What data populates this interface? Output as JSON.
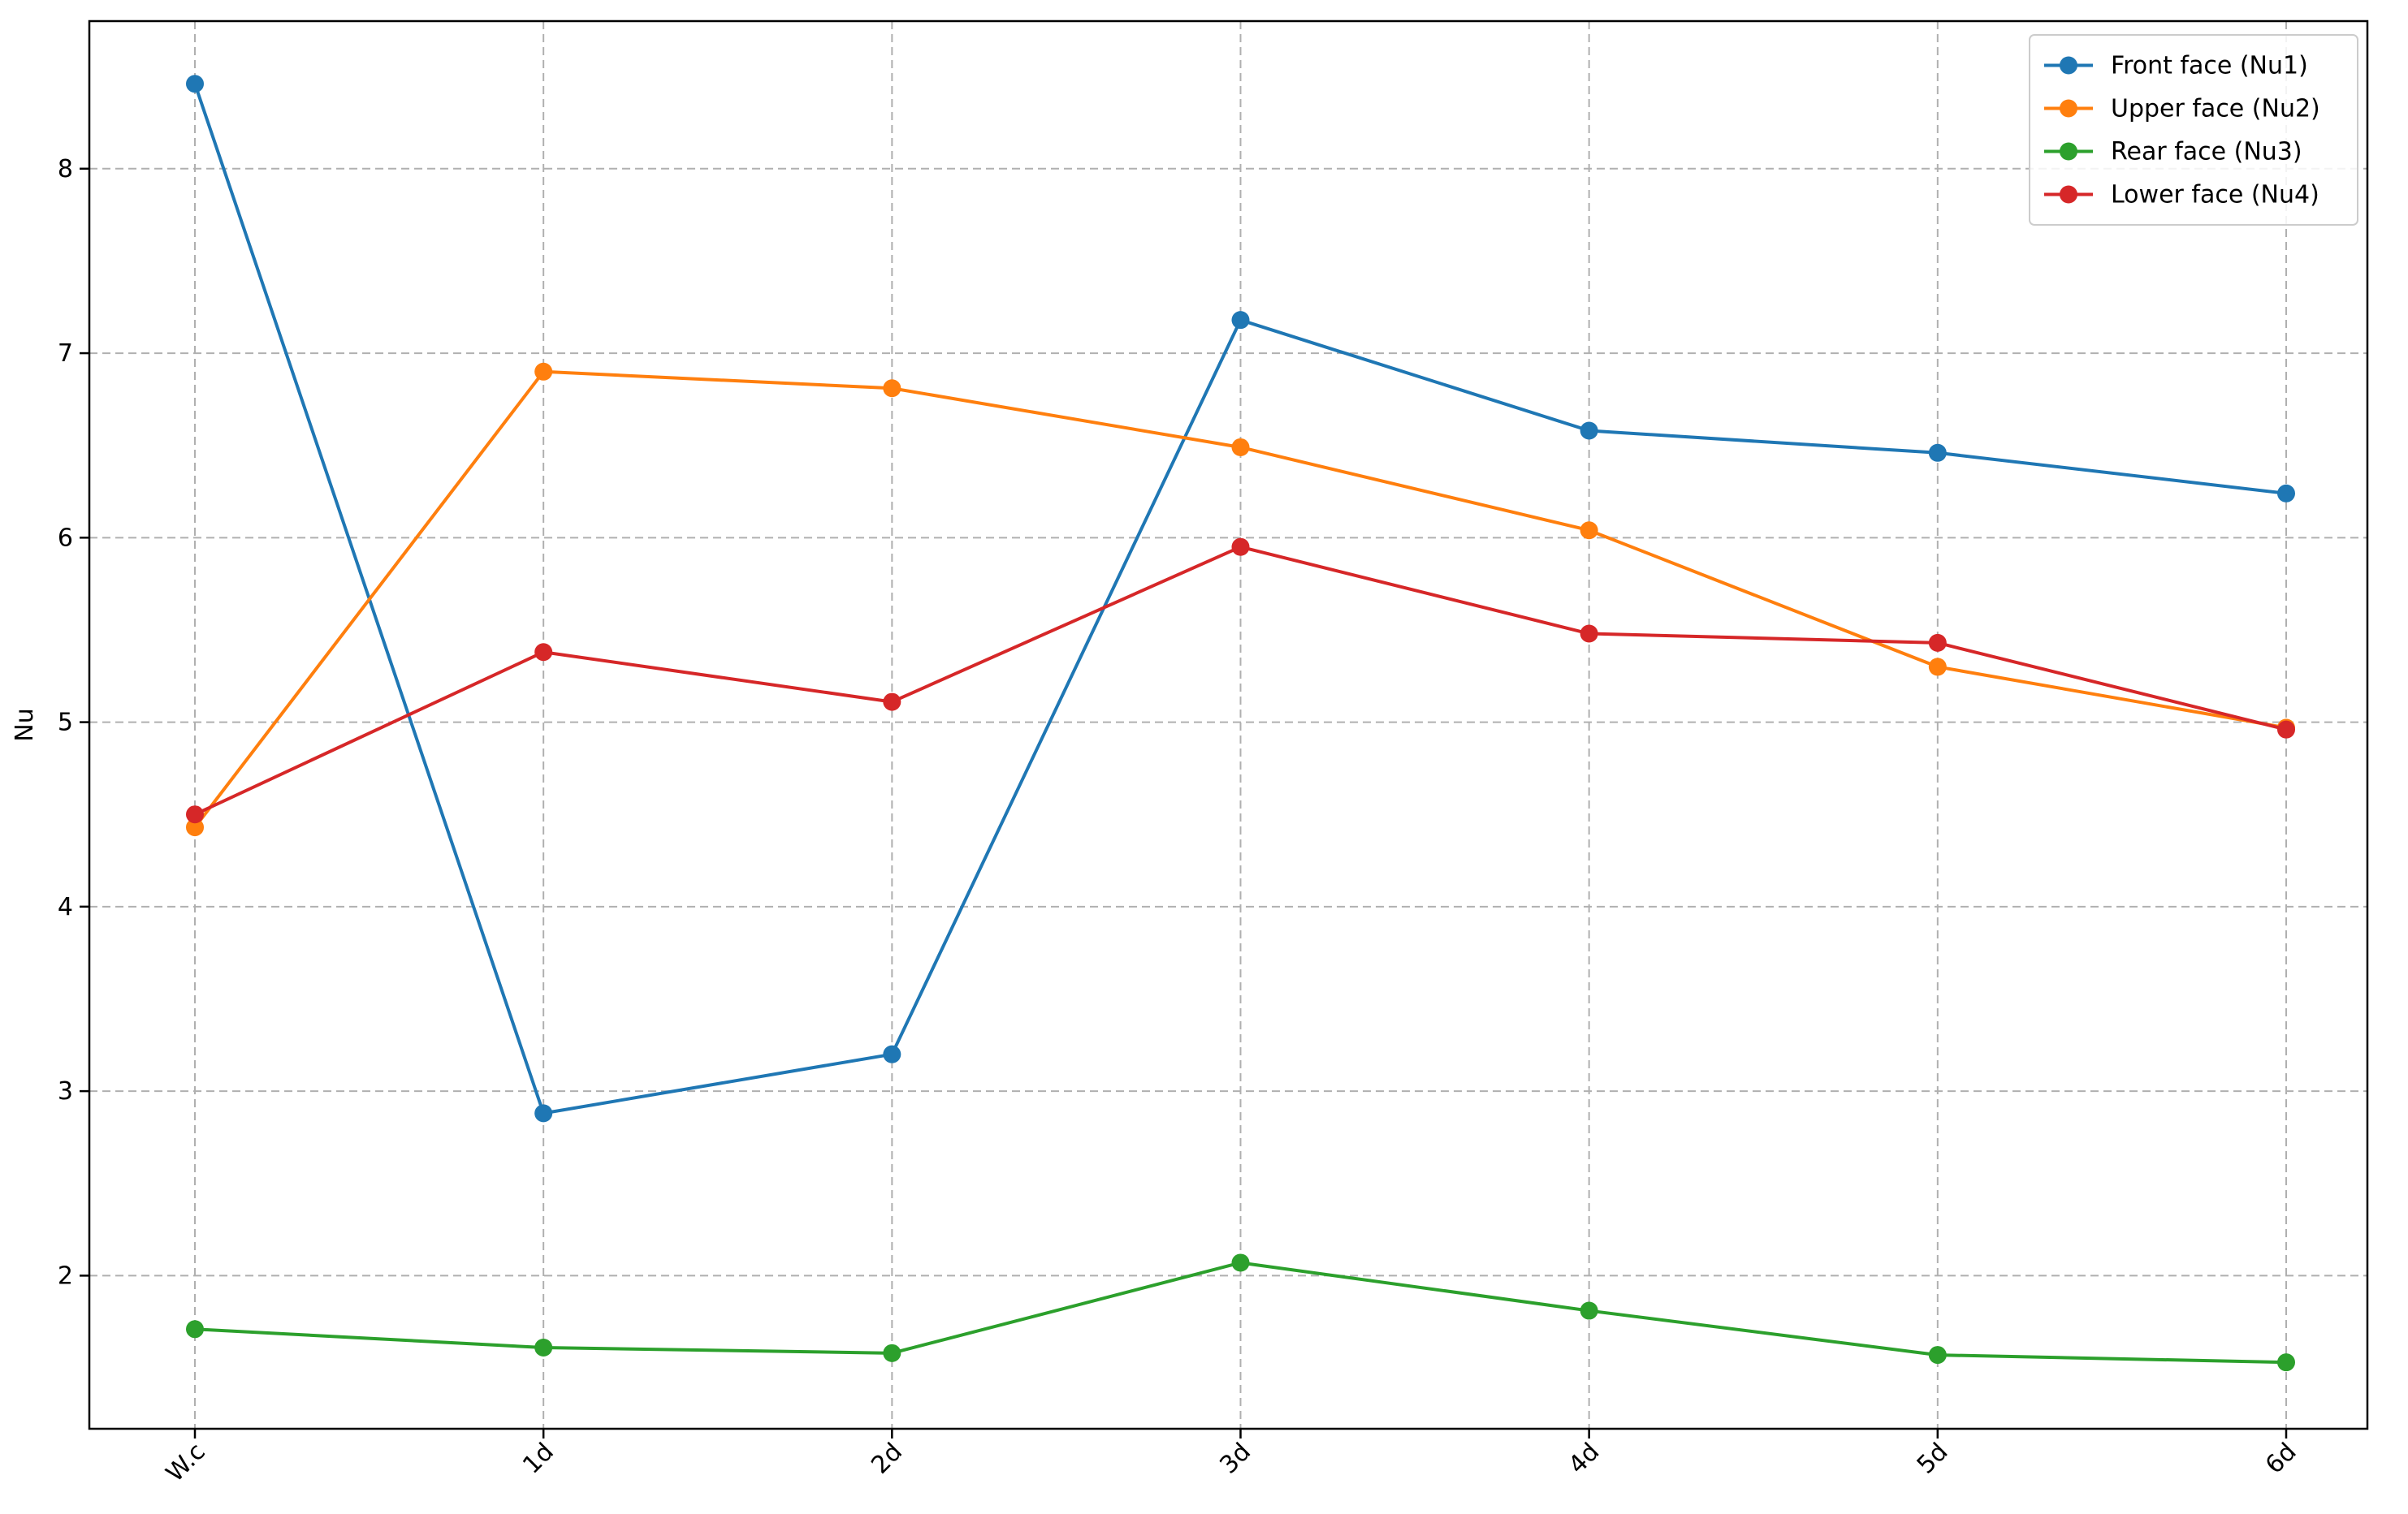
{
  "chart_data": {
    "type": "line",
    "title": "",
    "xlabel": "",
    "ylabel": "Nu",
    "categories": [
      "W.c",
      "1d",
      "2d",
      "3d",
      "4d",
      "5d",
      "6d"
    ],
    "ylim": [
      1.17,
      8.8
    ],
    "yticks": [
      2,
      3,
      4,
      5,
      6,
      7,
      8
    ],
    "grid": true,
    "legend_position": "top-right",
    "x_tick_rotation": 45,
    "series": [
      {
        "name": "Front face (Nu1)",
        "color": "#1f77b4",
        "values": [
          8.46,
          2.88,
          3.2,
          7.18,
          6.58,
          6.46,
          6.24
        ]
      },
      {
        "name": "Upper face (Nu2)",
        "color": "#ff7f0e",
        "values": [
          4.43,
          6.9,
          6.81,
          6.49,
          6.04,
          5.3,
          4.97
        ]
      },
      {
        "name": "Rear face (Nu3)",
        "color": "#2ca02c",
        "values": [
          1.71,
          1.61,
          1.58,
          2.07,
          1.81,
          1.57,
          1.53
        ]
      },
      {
        "name": "Lower face (Nu4)",
        "color": "#d62728",
        "values": [
          4.5,
          5.38,
          5.11,
          5.95,
          5.48,
          5.43,
          4.96
        ]
      }
    ]
  }
}
